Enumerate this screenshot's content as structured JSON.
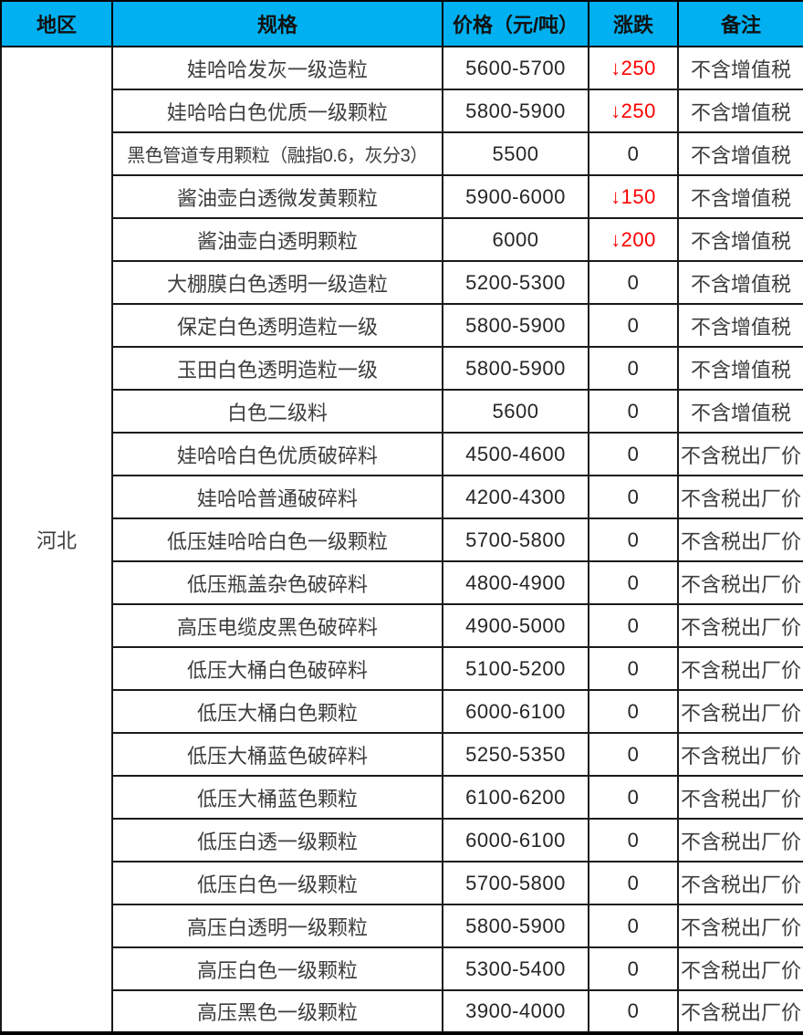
{
  "table": {
    "region": "河北",
    "header": {
      "region": "地区",
      "spec": "规格",
      "price": "价格（元/吨）",
      "change": "涨跌",
      "note": "备注"
    },
    "rows": [
      {
        "spec": "娃哈哈发灰一级造粒",
        "price": "5600-5700",
        "change": "↓250",
        "is_down": true,
        "note": "不含增值税"
      },
      {
        "spec": "娃哈哈白色优质一级颗粒",
        "price": "5800-5900",
        "change": "↓250",
        "is_down": true,
        "note": "不含增值税"
      },
      {
        "spec": "黑色管道专用颗粒（融指0.6，灰分3）",
        "price": "5500",
        "change": "0",
        "is_down": false,
        "note": "不含增值税"
      },
      {
        "spec": "酱油壶白透微发黄颗粒",
        "price": "5900-6000",
        "change": "↓150",
        "is_down": true,
        "note": "不含增值税"
      },
      {
        "spec": "酱油壶白透明颗粒",
        "price": "6000",
        "change": "↓200",
        "is_down": true,
        "note": "不含增值税"
      },
      {
        "spec": "大棚膜白色透明一级造粒",
        "price": "5200-5300",
        "change": "0",
        "is_down": false,
        "note": "不含增值税"
      },
      {
        "spec": "保定白色透明造粒一级",
        "price": "5800-5900",
        "change": "0",
        "is_down": false,
        "note": "不含增值税"
      },
      {
        "spec": "玉田白色透明造粒一级",
        "price": "5800-5900",
        "change": "0",
        "is_down": false,
        "note": "不含增值税"
      },
      {
        "spec": "白色二级料",
        "price": "5600",
        "change": "0",
        "is_down": false,
        "note": "不含增值税"
      },
      {
        "spec": "娃哈哈白色优质破碎料",
        "price": "4500-4600",
        "change": "0",
        "is_down": false,
        "note": "不含税出厂价"
      },
      {
        "spec": "娃哈哈普通破碎料",
        "price": "4200-4300",
        "change": "0",
        "is_down": false,
        "note": "不含税出厂价"
      },
      {
        "spec": "低压娃哈哈白色一级颗粒",
        "price": "5700-5800",
        "change": "0",
        "is_down": false,
        "note": "不含税出厂价"
      },
      {
        "spec": "低压瓶盖杂色破碎料",
        "price": "4800-4900",
        "change": "0",
        "is_down": false,
        "note": "不含税出厂价"
      },
      {
        "spec": "高压电缆皮黑色破碎料",
        "price": "4900-5000",
        "change": "0",
        "is_down": false,
        "note": "不含税出厂价"
      },
      {
        "spec": "低压大桶白色破碎料",
        "price": "5100-5200",
        "change": "0",
        "is_down": false,
        "note": "不含税出厂价"
      },
      {
        "spec": "低压大桶白色颗粒",
        "price": "6000-6100",
        "change": "0",
        "is_down": false,
        "note": "不含税出厂价"
      },
      {
        "spec": "低压大桶蓝色破碎料",
        "price": "5250-5350",
        "change": "0",
        "is_down": false,
        "note": "不含税出厂价"
      },
      {
        "spec": "低压大桶蓝色颗粒",
        "price": "6100-6200",
        "change": "0",
        "is_down": false,
        "note": "不含税出厂价"
      },
      {
        "spec": "低压白透一级颗粒",
        "price": "6000-6100",
        "change": "0",
        "is_down": false,
        "note": "不含税出厂价"
      },
      {
        "spec": "低压白色一级颗粒",
        "price": "5700-5800",
        "change": "0",
        "is_down": false,
        "note": "不含税出厂价"
      },
      {
        "spec": "高压白透明一级颗粒",
        "price": "5800-5900",
        "change": "0",
        "is_down": false,
        "note": "不含税出厂价"
      },
      {
        "spec": "高压白色一级颗粒",
        "price": "5300-5400",
        "change": "0",
        "is_down": false,
        "note": "不含税出厂价"
      },
      {
        "spec": "高压黑色一级颗粒",
        "price": "3900-4000",
        "change": "0",
        "is_down": false,
        "note": "不含税出厂价"
      }
    ]
  },
  "colors": {
    "header_bg": "#00B0F0",
    "header_text": "#111111",
    "body_text": "#3d3d3d",
    "border": "#1a1a1a",
    "down_red": "#FF0000",
    "background": "#FFFFFF"
  },
  "icons": {
    "down_arrow": "↓"
  }
}
